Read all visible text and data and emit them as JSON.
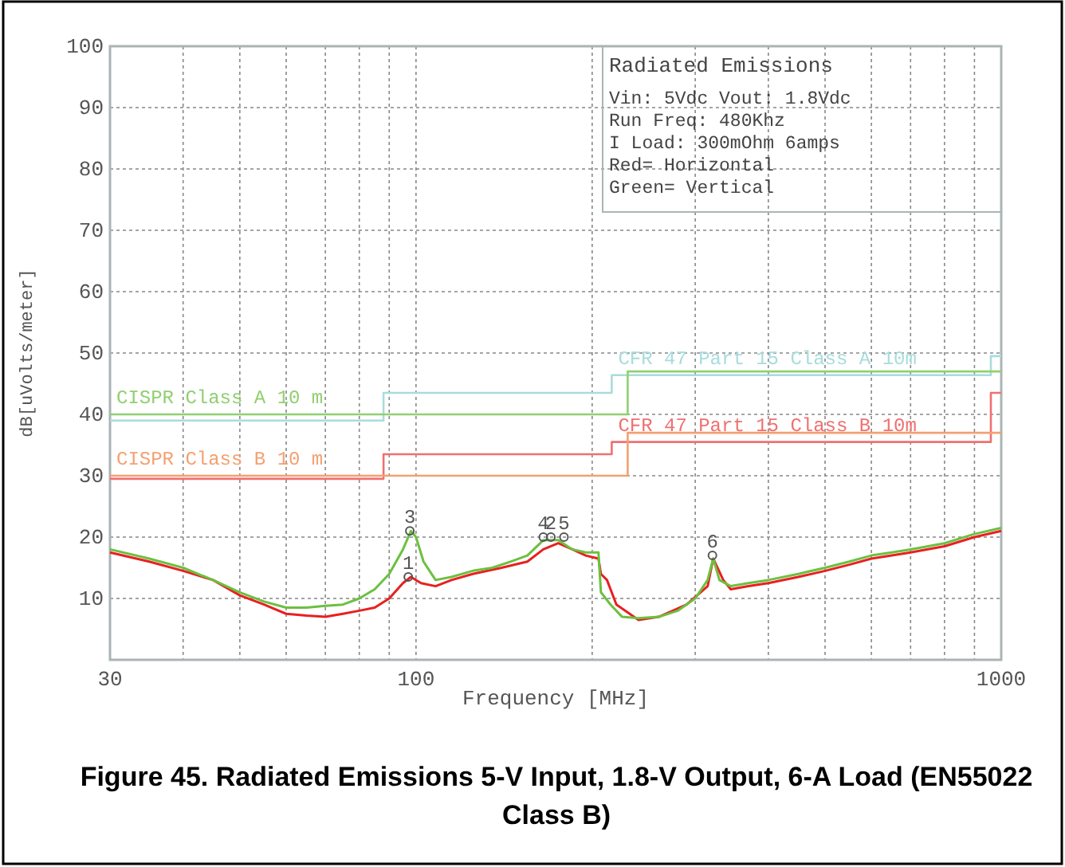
{
  "chart_data": {
    "type": "line",
    "title": "Figure 45. Radiated Emissions 5-V Input, 1.8-V Output, 6-A Load (EN55022 Class B)",
    "xlabel": "Frequency [MHz]",
    "ylabel": "dB[uVolts/meter]",
    "log": "x",
    "grid": true,
    "xlim": [
      30,
      1000
    ],
    "ylim": [
      0,
      100
    ],
    "xticks": [
      30,
      {
        "value": 40,
        "label": null
      },
      {
        "value": 50,
        "label": null
      },
      {
        "value": 60,
        "label": null
      },
      {
        "value": 70,
        "label": null
      },
      {
        "value": 80,
        "label": null
      },
      {
        "value": 90,
        "label": null
      },
      100,
      {
        "value": 200,
        "label": null
      },
      {
        "value": 300,
        "label": null
      },
      {
        "value": 400,
        "label": null
      },
      {
        "value": 500,
        "label": null
      },
      {
        "value": 600,
        "label": null
      },
      {
        "value": 700,
        "label": null
      },
      {
        "value": 800,
        "label": null
      },
      {
        "value": 900,
        "label": null
      },
      1000
    ],
    "yticks": [
      10,
      20,
      30,
      40,
      50,
      60,
      70,
      80,
      90,
      100
    ],
    "annotations": [
      "Radiated Emissions",
      "Vin: 5Vdc  Vout: 1.8Vdc",
      "Run Freq: 480Khz",
      "I Load: 300mOhm 6amps",
      "Red= Horizontal",
      "Green= Vertical",
      {
        "text": "3",
        "x": 97.6,
        "y": 21
      },
      {
        "text": "1",
        "x": 97,
        "y": 13.5
      },
      {
        "text": "4",
        "x": 165,
        "y": 20
      },
      {
        "text": "2",
        "x": 170,
        "y": 20
      },
      {
        "text": "5",
        "x": 179,
        "y": 20
      },
      {
        "text": "6",
        "x": 321,
        "y": 17
      }
    ],
    "series": [
      {
        "type": "step",
        "name": "CFR 47 Part 15  Class A 10m",
        "color": "#a8dcdc",
        "x": [
          30,
          88,
          216,
          960,
          1000
        ],
        "values": [
          39,
          43.5,
          46.4,
          49.5,
          49.5
        ]
      },
      {
        "type": "step",
        "name": "CISPR Class A 10 m",
        "color": "#90d070",
        "x": [
          30,
          230,
          1000
        ],
        "values": [
          40,
          47,
          47
        ]
      },
      {
        "type": "step",
        "name": "CFR 47 Part 15  Class B 10m",
        "color": "#f07070",
        "x": [
          30,
          88,
          216,
          960,
          1000
        ],
        "values": [
          29.5,
          33.5,
          35.5,
          43.5,
          43.5
        ]
      },
      {
        "type": "step",
        "name": "CISPR Class B 10 m",
        "color": "#f4a070",
        "x": [
          30,
          230,
          1000
        ],
        "values": [
          30,
          37,
          37
        ]
      },
      {
        "color": "#e82020",
        "x": [
          30,
          35,
          40,
          45,
          50,
          55,
          60,
          65,
          70,
          75,
          80,
          85,
          90,
          95,
          98,
          102,
          108,
          115,
          125,
          140,
          155,
          165,
          175,
          185,
          195,
          205,
          207,
          212,
          220,
          240,
          260,
          290,
          315,
          322,
          335,
          345,
          370,
          400,
          450,
          500,
          550,
          600,
          650,
          700,
          800,
          900,
          1000
        ],
        "values": [
          17.5,
          16,
          14.5,
          13,
          10.5,
          9,
          7.5,
          7.2,
          7,
          7.5,
          8,
          8.5,
          10,
          12.5,
          13.5,
          12.5,
          12,
          13,
          14,
          15,
          16,
          18,
          19,
          18,
          17,
          16.5,
          14,
          13,
          9,
          6.5,
          7,
          9,
          12,
          16.5,
          13,
          11.5,
          12,
          12.5,
          13.5,
          14.5,
          15.5,
          16.5,
          17,
          17.5,
          18.5,
          20,
          21
        ]
      },
      {
        "color": "#6cc040",
        "x": [
          30,
          35,
          40,
          45,
          50,
          55,
          60,
          65,
          70,
          75,
          80,
          85,
          90,
          95,
          98,
          100,
          103,
          108,
          115,
          125,
          135,
          145,
          155,
          165,
          175,
          185,
          195,
          205,
          207,
          215,
          225,
          240,
          260,
          280,
          300,
          315,
          322,
          330,
          345,
          370,
          400,
          450,
          500,
          550,
          600,
          650,
          700,
          800,
          900,
          1000
        ],
        "values": [
          18,
          16.5,
          15,
          13,
          11,
          9.5,
          8.5,
          8.5,
          8.8,
          9,
          10,
          11.5,
          14,
          18,
          21,
          20,
          16,
          13,
          13.5,
          14.5,
          15,
          16,
          17,
          19.5,
          19.5,
          18,
          17.5,
          17.5,
          11,
          9,
          7,
          6.8,
          7,
          8,
          10,
          13,
          16.5,
          13,
          12,
          12.5,
          13,
          14,
          15,
          16,
          17,
          17.5,
          18,
          19,
          20.5,
          21.5
        ]
      }
    ]
  }
}
